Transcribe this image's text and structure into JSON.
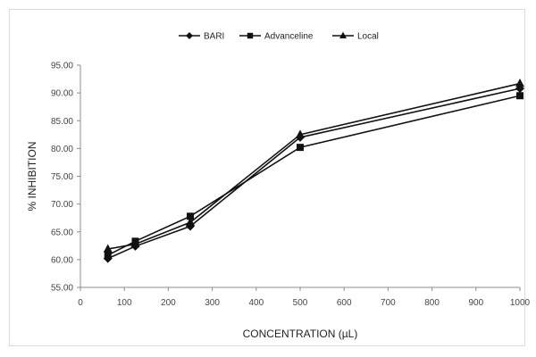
{
  "chart_data": {
    "type": "line",
    "title": "",
    "xlabel": "CONCENTRATION (µL)",
    "ylabel": "% INHIBITION",
    "xlim": [
      0,
      1000
    ],
    "ylim": [
      55,
      95
    ],
    "x_ticks": [
      "0",
      "100",
      "200",
      "300",
      "400",
      "500",
      "600",
      "700",
      "800",
      "900",
      "1000"
    ],
    "y_ticks": [
      "55.00",
      "60.00",
      "65.00",
      "70.00",
      "75.00",
      "80.00",
      "85.00",
      "90.00",
      "95.00"
    ],
    "grid": false,
    "legend_position": "top",
    "line_color": "#111111",
    "x": [
      62.5,
      125,
      250,
      500,
      1000
    ],
    "series": [
      {
        "name": "BARI",
        "marker": "diamond",
        "values": [
          60.2,
          62.4,
          66.0,
          82.0,
          90.8
        ]
      },
      {
        "name": "Advanceline",
        "marker": "square",
        "values": [
          60.8,
          63.3,
          67.8,
          80.2,
          89.5
        ]
      },
      {
        "name": "Local",
        "marker": "triangle",
        "values": [
          61.9,
          62.8,
          66.7,
          82.5,
          91.7
        ]
      }
    ]
  }
}
